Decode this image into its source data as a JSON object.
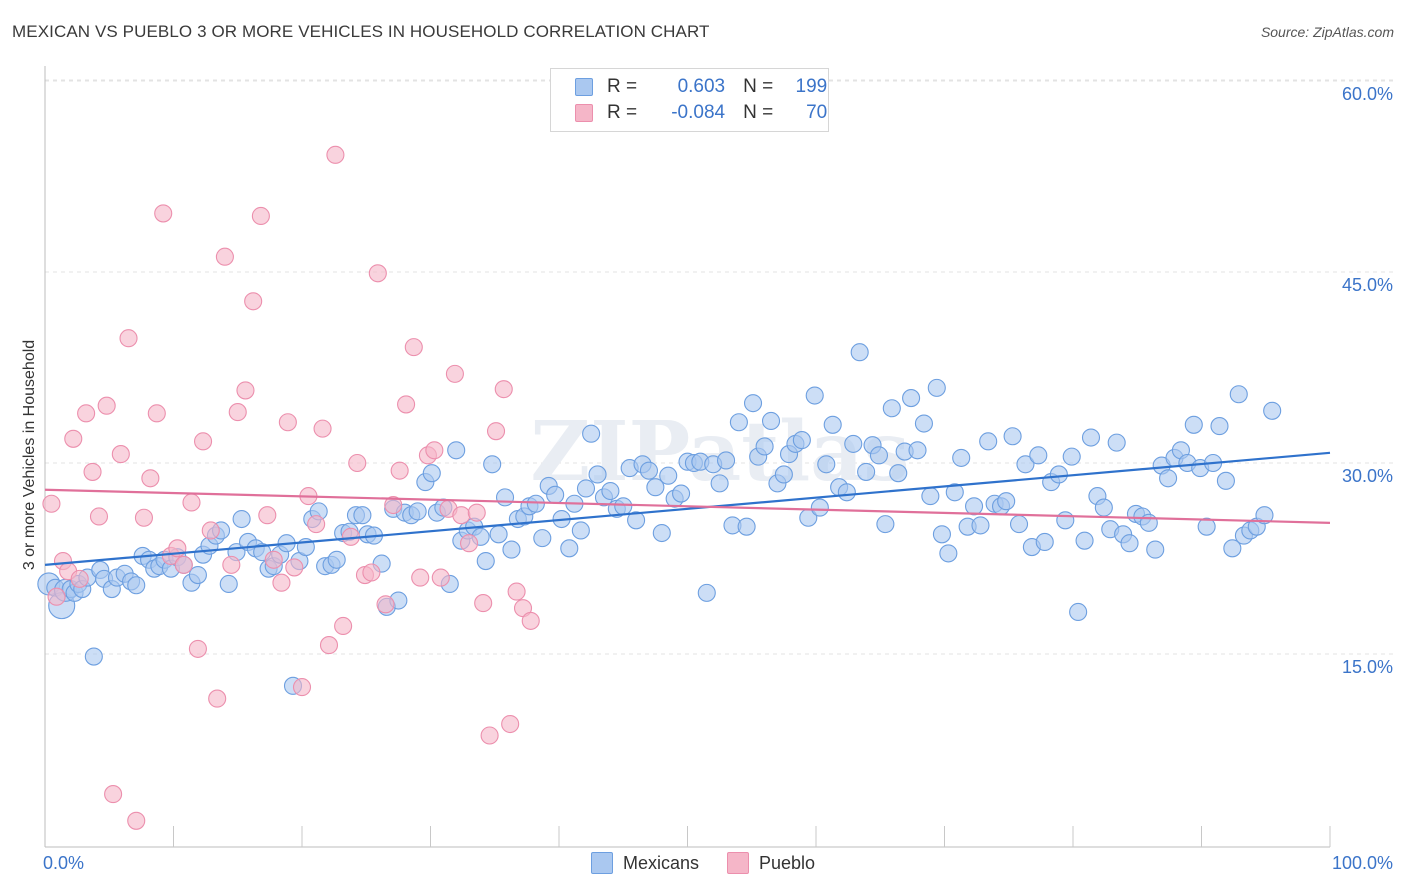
{
  "header": {
    "title": "MEXICAN VS PUEBLO 3 OR MORE VEHICLES IN HOUSEHOLD CORRELATION CHART",
    "source": "Source: ZipAtlas.com"
  },
  "legend_top": {
    "rows": [
      {
        "r_label": "R =",
        "r_value": "0.603",
        "n_label": "N =",
        "n_value": "199",
        "color": "#aac8f0"
      },
      {
        "r_label": "R =",
        "r_value": "-0.084",
        "n_label": "N =",
        "n_value": "70",
        "color": "#f5b6c8"
      }
    ]
  },
  "watermark": "ZIPatlas",
  "chart_data": {
    "type": "scatter",
    "title": "MEXICAN VS PUEBLO 3 OR MORE VEHICLES IN HOUSEHOLD CORRELATION CHART",
    "xlabel": "",
    "ylabel": "3 or more Vehicles in Household",
    "xlim": [
      0,
      100
    ],
    "ylim": [
      0,
      65
    ],
    "x_ticks": [
      "0.0%",
      "100.0%"
    ],
    "y_ticks": [
      {
        "value": 15,
        "label": "15.0%"
      },
      {
        "value": 30,
        "label": "30.0%"
      },
      {
        "value": 45,
        "label": "45.0%"
      },
      {
        "value": 60,
        "label": "60.0%"
      }
    ],
    "grid": "horizontal dashed",
    "legend_position": "bottom-center",
    "series": [
      {
        "name": "Mexicans",
        "color": "#6d9fe0",
        "fill": "#aac8f0",
        "trend": {
          "x0": 0,
          "y0": 22.0,
          "x1": 100,
          "y1": 30.8,
          "color": "#2f72cc"
        },
        "points": [
          [
            0.3,
            20.5
          ],
          [
            0.8,
            20.2
          ],
          [
            1.3,
            18.8
          ],
          [
            1.6,
            20.0
          ],
          [
            2.0,
            20.1
          ],
          [
            2.3,
            19.8
          ],
          [
            2.6,
            20.5
          ],
          [
            2.9,
            20.1
          ],
          [
            3.3,
            21.0
          ],
          [
            3.8,
            14.8
          ],
          [
            4.3,
            21.6
          ],
          [
            4.6,
            20.9
          ],
          [
            5.2,
            20.1
          ],
          [
            5.6,
            21.0
          ],
          [
            6.2,
            21.3
          ],
          [
            6.7,
            20.7
          ],
          [
            7.1,
            20.4
          ],
          [
            7.6,
            22.7
          ],
          [
            8.1,
            22.4
          ],
          [
            8.5,
            21.7
          ],
          [
            8.9,
            21.9
          ],
          [
            9.3,
            22.4
          ],
          [
            9.8,
            21.7
          ],
          [
            10.3,
            22.6
          ],
          [
            10.8,
            22.0
          ],
          [
            11.4,
            20.6
          ],
          [
            11.9,
            21.2
          ],
          [
            12.3,
            22.8
          ],
          [
            12.8,
            23.5
          ],
          [
            13.3,
            24.3
          ],
          [
            13.7,
            24.7
          ],
          [
            14.3,
            20.5
          ],
          [
            14.9,
            23.0
          ],
          [
            15.3,
            25.6
          ],
          [
            15.8,
            23.8
          ],
          [
            16.4,
            23.3
          ],
          [
            16.9,
            23.0
          ],
          [
            17.4,
            21.7
          ],
          [
            17.8,
            21.9
          ],
          [
            18.3,
            22.8
          ],
          [
            18.8,
            23.7
          ],
          [
            19.3,
            12.5
          ],
          [
            19.8,
            22.3
          ],
          [
            20.3,
            23.4
          ],
          [
            20.8,
            25.6
          ],
          [
            21.3,
            26.2
          ],
          [
            21.8,
            21.9
          ],
          [
            22.3,
            22.0
          ],
          [
            22.7,
            22.4
          ],
          [
            23.2,
            24.5
          ],
          [
            23.7,
            24.6
          ],
          [
            24.2,
            25.9
          ],
          [
            24.7,
            25.9
          ],
          [
            25.1,
            24.4
          ],
          [
            25.6,
            24.3
          ],
          [
            26.2,
            22.1
          ],
          [
            26.6,
            18.7
          ],
          [
            27.1,
            26.4
          ],
          [
            27.5,
            19.2
          ],
          [
            28.0,
            26.1
          ],
          [
            28.5,
            25.9
          ],
          [
            29.0,
            26.2
          ],
          [
            29.6,
            28.5
          ],
          [
            30.1,
            29.2
          ],
          [
            30.5,
            26.1
          ],
          [
            31.0,
            26.5
          ],
          [
            31.5,
            20.5
          ],
          [
            32.0,
            31.0
          ],
          [
            32.4,
            23.9
          ],
          [
            32.9,
            24.7
          ],
          [
            33.4,
            25.0
          ],
          [
            33.9,
            24.2
          ],
          [
            34.3,
            22.3
          ],
          [
            34.8,
            29.9
          ],
          [
            35.3,
            24.4
          ],
          [
            35.8,
            27.3
          ],
          [
            36.3,
            23.2
          ],
          [
            36.8,
            25.6
          ],
          [
            37.3,
            25.8
          ],
          [
            37.7,
            26.6
          ],
          [
            38.2,
            26.8
          ],
          [
            38.7,
            24.1
          ],
          [
            39.2,
            28.2
          ],
          [
            39.7,
            27.5
          ],
          [
            40.2,
            25.6
          ],
          [
            40.8,
            23.3
          ],
          [
            41.2,
            26.8
          ],
          [
            41.7,
            24.7
          ],
          [
            42.1,
            28.0
          ],
          [
            42.5,
            32.3
          ],
          [
            43.0,
            29.1
          ],
          [
            43.5,
            27.3
          ],
          [
            44.0,
            27.8
          ],
          [
            44.5,
            26.4
          ],
          [
            45.0,
            26.6
          ],
          [
            45.5,
            29.6
          ],
          [
            46.0,
            25.5
          ],
          [
            46.5,
            29.9
          ],
          [
            47.0,
            29.4
          ],
          [
            47.5,
            28.1
          ],
          [
            48.0,
            24.5
          ],
          [
            48.5,
            29.0
          ],
          [
            49.0,
            27.2
          ],
          [
            49.5,
            27.6
          ],
          [
            50.0,
            30.1
          ],
          [
            50.5,
            30.0
          ],
          [
            51.0,
            30.1
          ],
          [
            51.5,
            19.8
          ],
          [
            52.0,
            29.9
          ],
          [
            52.5,
            28.4
          ],
          [
            53.0,
            30.2
          ],
          [
            53.5,
            25.1
          ],
          [
            54.0,
            33.2
          ],
          [
            54.6,
            25.0
          ],
          [
            55.1,
            34.7
          ],
          [
            55.5,
            30.5
          ],
          [
            56.0,
            31.3
          ],
          [
            56.5,
            33.3
          ],
          [
            57.0,
            28.4
          ],
          [
            57.5,
            29.1
          ],
          [
            57.9,
            30.7
          ],
          [
            58.4,
            31.5
          ],
          [
            58.9,
            31.8
          ],
          [
            59.4,
            25.7
          ],
          [
            59.9,
            35.3
          ],
          [
            60.3,
            26.5
          ],
          [
            60.8,
            29.9
          ],
          [
            61.3,
            33.0
          ],
          [
            61.8,
            28.1
          ],
          [
            62.4,
            27.7
          ],
          [
            62.9,
            31.5
          ],
          [
            63.4,
            38.7
          ],
          [
            63.9,
            29.3
          ],
          [
            64.4,
            31.4
          ],
          [
            64.9,
            30.6
          ],
          [
            65.4,
            25.2
          ],
          [
            65.9,
            34.3
          ],
          [
            66.4,
            29.2
          ],
          [
            66.9,
            30.9
          ],
          [
            67.4,
            35.1
          ],
          [
            67.9,
            31.0
          ],
          [
            68.4,
            33.1
          ],
          [
            68.9,
            27.4
          ],
          [
            69.4,
            35.9
          ],
          [
            69.8,
            24.4
          ],
          [
            70.3,
            22.9
          ],
          [
            70.8,
            27.7
          ],
          [
            71.3,
            30.4
          ],
          [
            71.8,
            25.0
          ],
          [
            72.3,
            26.6
          ],
          [
            72.8,
            25.1
          ],
          [
            73.4,
            31.7
          ],
          [
            73.9,
            26.8
          ],
          [
            74.4,
            26.6
          ],
          [
            74.8,
            27.0
          ],
          [
            75.3,
            32.1
          ],
          [
            75.8,
            25.2
          ],
          [
            76.3,
            29.9
          ],
          [
            76.8,
            23.4
          ],
          [
            77.3,
            30.6
          ],
          [
            77.8,
            23.8
          ],
          [
            78.3,
            28.5
          ],
          [
            78.9,
            29.1
          ],
          [
            79.4,
            25.5
          ],
          [
            79.9,
            30.5
          ],
          [
            80.4,
            18.3
          ],
          [
            80.9,
            23.9
          ],
          [
            81.4,
            32.0
          ],
          [
            81.9,
            27.4
          ],
          [
            82.4,
            26.5
          ],
          [
            82.9,
            24.8
          ],
          [
            83.4,
            31.6
          ],
          [
            83.9,
            24.4
          ],
          [
            84.4,
            23.7
          ],
          [
            84.9,
            26.0
          ],
          [
            85.4,
            25.8
          ],
          [
            85.9,
            25.3
          ],
          [
            86.4,
            23.2
          ],
          [
            86.9,
            29.8
          ],
          [
            87.4,
            28.8
          ],
          [
            87.9,
            30.4
          ],
          [
            88.4,
            31.0
          ],
          [
            88.9,
            30.0
          ],
          [
            89.4,
            33.0
          ],
          [
            89.9,
            29.6
          ],
          [
            90.4,
            25.0
          ],
          [
            90.9,
            30.0
          ],
          [
            91.4,
            32.9
          ],
          [
            91.9,
            28.6
          ],
          [
            92.4,
            23.3
          ],
          [
            92.9,
            35.4
          ],
          [
            93.3,
            24.3
          ],
          [
            93.8,
            24.7
          ],
          [
            94.3,
            25.0
          ],
          [
            94.9,
            25.9
          ],
          [
            95.5,
            34.1
          ]
        ]
      },
      {
        "name": "Pueblo",
        "color": "#ec8fad",
        "fill": "#f5b6c8",
        "trend": {
          "x0": 0,
          "y0": 27.9,
          "x1": 100,
          "y1": 25.3,
          "color": "#e0709a"
        },
        "points": [
          [
            0.5,
            26.8
          ],
          [
            0.9,
            19.5
          ],
          [
            1.4,
            22.3
          ],
          [
            1.8,
            21.5
          ],
          [
            2.2,
            31.9
          ],
          [
            2.7,
            20.9
          ],
          [
            3.2,
            33.9
          ],
          [
            3.7,
            29.3
          ],
          [
            4.2,
            25.8
          ],
          [
            4.8,
            34.5
          ],
          [
            5.3,
            4.0
          ],
          [
            5.9,
            30.7
          ],
          [
            6.5,
            39.8
          ],
          [
            7.1,
            1.9
          ],
          [
            7.7,
            25.7
          ],
          [
            8.2,
            28.8
          ],
          [
            8.7,
            33.9
          ],
          [
            9.2,
            49.6
          ],
          [
            9.8,
            22.7
          ],
          [
            10.3,
            23.3
          ],
          [
            10.8,
            22.0
          ],
          [
            11.4,
            26.9
          ],
          [
            11.9,
            15.4
          ],
          [
            12.3,
            31.7
          ],
          [
            12.9,
            24.7
          ],
          [
            13.4,
            11.5
          ],
          [
            14.0,
            46.2
          ],
          [
            14.5,
            22.0
          ],
          [
            15.0,
            34.0
          ],
          [
            15.6,
            35.7
          ],
          [
            16.2,
            42.7
          ],
          [
            16.8,
            49.4
          ],
          [
            17.3,
            25.9
          ],
          [
            17.8,
            22.4
          ],
          [
            18.4,
            20.6
          ],
          [
            18.9,
            33.2
          ],
          [
            19.4,
            21.8
          ],
          [
            20.0,
            12.4
          ],
          [
            20.5,
            27.4
          ],
          [
            21.1,
            25.2
          ],
          [
            21.6,
            32.7
          ],
          [
            22.1,
            15.7
          ],
          [
            22.6,
            54.2
          ],
          [
            23.2,
            17.2
          ],
          [
            23.8,
            24.2
          ],
          [
            24.3,
            30.0
          ],
          [
            24.9,
            21.2
          ],
          [
            25.4,
            21.4
          ],
          [
            25.9,
            44.9
          ],
          [
            26.5,
            18.9
          ],
          [
            27.1,
            26.7
          ],
          [
            27.6,
            29.4
          ],
          [
            28.1,
            34.6
          ],
          [
            28.7,
            39.1
          ],
          [
            29.2,
            21.0
          ],
          [
            29.8,
            30.6
          ],
          [
            30.3,
            31.0
          ],
          [
            30.8,
            21.0
          ],
          [
            31.4,
            26.4
          ],
          [
            31.9,
            37.0
          ],
          [
            32.4,
            25.9
          ],
          [
            33.0,
            23.7
          ],
          [
            33.6,
            26.1
          ],
          [
            34.1,
            19.0
          ],
          [
            34.6,
            8.6
          ],
          [
            35.1,
            32.5
          ],
          [
            35.7,
            35.8
          ],
          [
            36.2,
            9.5
          ],
          [
            36.7,
            19.9
          ],
          [
            37.2,
            18.6
          ],
          [
            37.8,
            17.6
          ]
        ]
      }
    ]
  },
  "bottom_legend": {
    "items": [
      {
        "label": "Mexicans",
        "color": "#aac8f0",
        "border": "#6d9fe0"
      },
      {
        "label": "Pueblo",
        "color": "#f5b6c8",
        "border": "#ec8fad"
      }
    ]
  }
}
